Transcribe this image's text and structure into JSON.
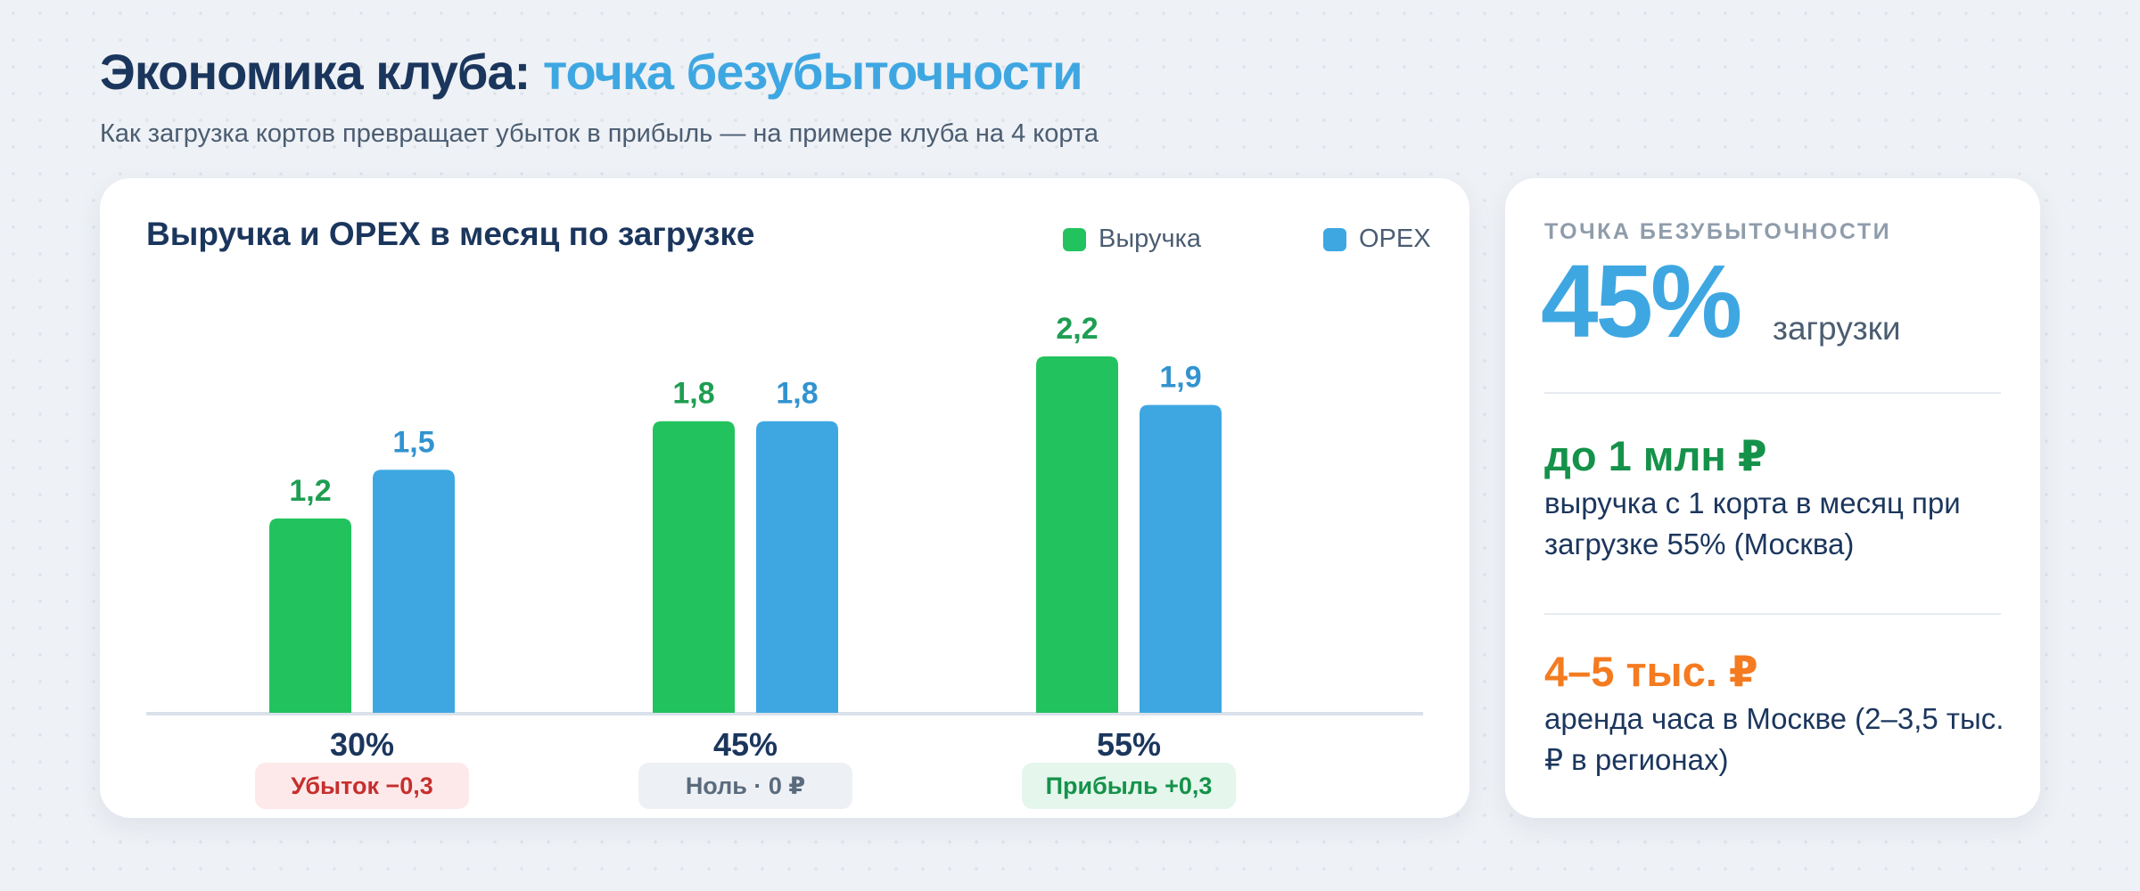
{
  "header": {
    "title_main": "Экономика клуба:",
    "title_accent": "точка безубыточности",
    "subtitle": "Как загрузка кортов превращает убыток в прибыль — на примере клуба на 4 корта"
  },
  "colors": {
    "revenue": "#22c35e",
    "opex": "#3ea7e2",
    "navy": "#1b365d",
    "loss": "#c62f2f",
    "neutral": "#5a6b7d",
    "profit": "#15924a",
    "orange": "#f47b20"
  },
  "chart_data": {
    "type": "bar",
    "title": "Выручка и OPEX в месяц по загрузке",
    "categories": [
      "30%",
      "45%",
      "55%"
    ],
    "series": [
      {
        "name": "Выручка",
        "values": [
          1.2,
          1.8,
          2.2
        ],
        "labels": [
          "1,2",
          "1,8",
          "2,2"
        ]
      },
      {
        "name": "OPEX",
        "values": [
          1.5,
          1.8,
          1.9
        ],
        "labels": [
          "1,5",
          "1,8",
          "1,9"
        ]
      }
    ],
    "ylim": [
      0,
      2.2
    ],
    "grid": false,
    "legend": "top-right",
    "outcomes": [
      {
        "label": "Убыток −0,3",
        "status": "loss"
      },
      {
        "label": "Ноль · 0 ₽",
        "status": "neutral"
      },
      {
        "label": "Прибыль +0,3",
        "status": "profit"
      }
    ]
  },
  "stats": {
    "eyebrow": "ТОЧКА БЕЗУБЫТОЧНОСТИ",
    "breakeven_value": "45%",
    "breakeven_unit": "загрузки",
    "revenue_value": "до 1 млн ₽",
    "revenue_desc": "выручка с 1 корта в месяц при загрузке 55% (Москва)",
    "rent_value": "4–5 тыс. ₽",
    "rent_desc": "аренда часа в Москве (2–3,5 тыс. ₽ в регионах)"
  }
}
